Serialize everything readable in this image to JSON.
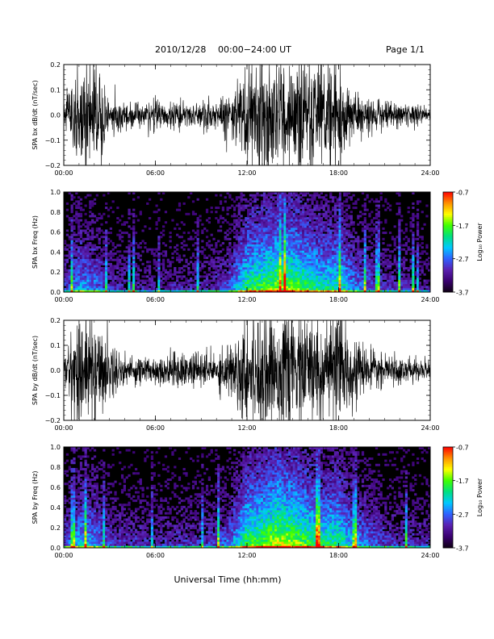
{
  "header": {
    "date_label": "2010/12/28",
    "time_range": "00:00−24:00 UT",
    "page_label": "Page 1/1"
  },
  "colors": {
    "background": "#ffffff",
    "spectrogram_bg": "#000000",
    "waveform": "#000000",
    "colorbar": [
      "#100014",
      "#3a0070",
      "#5a20b0",
      "#3060ff",
      "#00c8ff",
      "#00e080",
      "#40ff00",
      "#ffff00",
      "#ff9000",
      "#ff0000"
    ]
  },
  "chart_data": [
    {
      "type": "line",
      "ylabel": "SPA bx dB/dt (nT/sec)",
      "xlabel": "",
      "xlim": [
        "00:00",
        "24:00"
      ],
      "ylim": [
        -0.2,
        0.2
      ],
      "x_ticks": [
        "00:00",
        "06:00",
        "12:00",
        "18:00",
        "24:00"
      ],
      "y_ticks": [
        "0.2",
        "0.1",
        "0.0",
        "−0.1",
        "−0.2"
      ],
      "envelope_hours": [
        0,
        1,
        2,
        3,
        4,
        5,
        6,
        7,
        8,
        9,
        10,
        11,
        12,
        13,
        14,
        15,
        16,
        17,
        18,
        19,
        20,
        21,
        22,
        23,
        24
      ],
      "envelope_amplitude": [
        0.04,
        0.2,
        0.18,
        0.07,
        0.05,
        0.05,
        0.05,
        0.05,
        0.05,
        0.05,
        0.06,
        0.09,
        0.2,
        0.2,
        0.2,
        0.2,
        0.2,
        0.18,
        0.2,
        0.09,
        0.06,
        0.05,
        0.04,
        0.04,
        0.03
      ]
    },
    {
      "type": "heatmap",
      "ylabel": "SPA bx Freq (Hz)",
      "xlabel": "",
      "xlim": [
        "00:00",
        "24:00"
      ],
      "ylim": [
        0.0,
        1.0
      ],
      "x_ticks": [
        "00:00",
        "06:00",
        "12:00",
        "18:00",
        "24:00"
      ],
      "y_ticks": [
        "1.0",
        "0.8",
        "0.6",
        "0.4",
        "0.2",
        "0.0"
      ],
      "colorbar_label": "Log₁₀ Power",
      "colorbar_ticks": [
        "-0.7",
        "-1.7",
        "-2.7",
        "-3.7"
      ],
      "colorbar_range": [
        -3.7,
        -0.7
      ],
      "activity_hours": [
        0,
        1,
        2,
        3,
        4,
        5,
        6,
        7,
        8,
        9,
        10,
        11,
        12,
        13,
        14,
        15,
        16,
        17,
        18,
        19,
        20,
        21,
        22,
        23,
        24
      ],
      "activity_level": [
        0.3,
        0.55,
        0.5,
        0.3,
        0.25,
        0.25,
        0.2,
        0.25,
        0.25,
        0.25,
        0.3,
        0.45,
        0.8,
        0.85,
        0.95,
        0.9,
        0.8,
        0.7,
        0.75,
        0.5,
        0.4,
        0.3,
        0.3,
        0.25,
        0.2
      ]
    },
    {
      "type": "line",
      "ylabel": "SPA by dB/dt (nT/sec)",
      "xlabel": "",
      "xlim": [
        "00:00",
        "24:00"
      ],
      "ylim": [
        -0.2,
        0.2
      ],
      "x_ticks": [
        "00:00",
        "06:00",
        "12:00",
        "18:00",
        "24:00"
      ],
      "y_ticks": [
        "0.2",
        "0.1",
        "0.0",
        "−0.1",
        "−0.2"
      ],
      "envelope_hours": [
        0,
        1,
        2,
        3,
        4,
        5,
        6,
        7,
        8,
        9,
        10,
        11,
        12,
        13,
        14,
        15,
        16,
        17,
        18,
        19,
        20,
        21,
        22,
        23,
        24
      ],
      "envelope_amplitude": [
        0.05,
        0.2,
        0.2,
        0.1,
        0.06,
        0.05,
        0.05,
        0.06,
        0.06,
        0.06,
        0.07,
        0.1,
        0.2,
        0.2,
        0.2,
        0.2,
        0.2,
        0.2,
        0.2,
        0.11,
        0.07,
        0.05,
        0.05,
        0.04,
        0.04
      ]
    },
    {
      "type": "heatmap",
      "ylabel": "SPA by Freq (Hz)",
      "xlabel": "Universal Time (hh:mm)",
      "xlim": [
        "00:00",
        "24:00"
      ],
      "ylim": [
        0.0,
        1.0
      ],
      "x_ticks": [
        "00:00",
        "06:00",
        "12:00",
        "18:00",
        "24:00"
      ],
      "y_ticks": [
        "1.0",
        "0.8",
        "0.6",
        "0.4",
        "0.2",
        "0.0"
      ],
      "colorbar_label": "Log₁₀ Power",
      "colorbar_ticks": [
        "-0.7",
        "-1.7",
        "-2.7",
        "-3.7"
      ],
      "colorbar_range": [
        -3.7,
        -0.7
      ],
      "activity_hours": [
        0,
        1,
        2,
        3,
        4,
        5,
        6,
        7,
        8,
        9,
        10,
        11,
        12,
        13,
        14,
        15,
        16,
        17,
        18,
        19,
        20,
        21,
        22,
        23,
        24
      ],
      "activity_level": [
        0.35,
        0.6,
        0.55,
        0.35,
        0.3,
        0.3,
        0.25,
        0.3,
        0.3,
        0.3,
        0.35,
        0.5,
        0.85,
        0.9,
        1.0,
        0.95,
        0.85,
        0.75,
        0.8,
        0.55,
        0.45,
        0.35,
        0.3,
        0.3,
        0.25
      ]
    }
  ]
}
